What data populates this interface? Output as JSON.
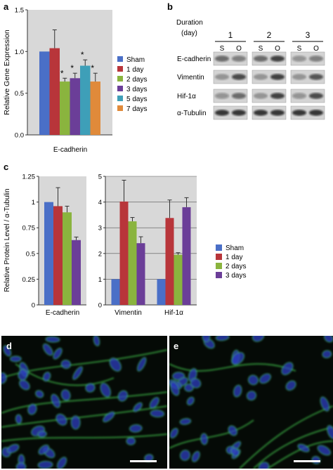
{
  "colors": {
    "sham": "#4a6fc7",
    "day1": "#b8353a",
    "day2": "#8ab43e",
    "day3": "#6b3e98",
    "day5": "#3e9fb8",
    "day7": "#e08a3a",
    "panel_bg": "#d8d8d8",
    "axis": "#333333",
    "micro_bg": "#050a06",
    "nuclei": "#2d3fbf",
    "membrane": "#3fbf4a"
  },
  "panel_labels": [
    "a",
    "b",
    "c",
    "d",
    "e"
  ],
  "panel_a": {
    "chart_data": {
      "type": "bar",
      "ylabel": "Relative Gene Expression",
      "ylim": [
        0,
        1.5
      ],
      "yticks": [
        "0.0",
        "0.5",
        "1.0",
        "1.5"
      ],
      "categories": [
        "E-cadherin"
      ],
      "series": [
        {
          "name": "Sham",
          "values": [
            1.0
          ],
          "error": [
            0
          ],
          "star": false
        },
        {
          "name": "1 day",
          "values": [
            1.04
          ],
          "error": [
            0.22
          ],
          "star": false
        },
        {
          "name": "2 days",
          "values": [
            0.64
          ],
          "error": [
            0.04
          ],
          "star": true
        },
        {
          "name": "3 days",
          "values": [
            0.68
          ],
          "error": [
            0.06
          ],
          "star": true
        },
        {
          "name": "5 days",
          "values": [
            0.83
          ],
          "error": [
            0.07
          ],
          "star": true
        },
        {
          "name": "7 days",
          "values": [
            0.64
          ],
          "error": [
            0.1
          ],
          "star": true
        }
      ],
      "legend": "right",
      "grid": false
    },
    "star": "*"
  },
  "panel_b": {
    "header": {
      "line1": "Duration",
      "line2": "(day)"
    },
    "groups": [
      "1",
      "2",
      "3"
    ],
    "lanes": [
      "S",
      "O"
    ],
    "rows": [
      "E-cadherin",
      "Vimentin",
      "Hif-1α",
      "α-Tubulin"
    ]
  },
  "panel_c": {
    "ylabel": "Relative Protein Level / α-Tubulin",
    "legend": [
      "Sham",
      "1 day",
      "2 days",
      "3 days"
    ],
    "chart_data": [
      {
        "type": "bar",
        "categories": [
          "E-cadherin"
        ],
        "ylim": [
          0,
          1.25
        ],
        "yticks": [
          "0",
          "0.25",
          "0.5",
          "0.75",
          "1",
          "1.25"
        ],
        "grid": false,
        "series": [
          {
            "name": "Sham",
            "values": [
              1.0
            ],
            "error": [
              0
            ]
          },
          {
            "name": "1 day",
            "values": [
              0.96
            ],
            "error": [
              0.18
            ]
          },
          {
            "name": "2 days",
            "values": [
              0.9
            ],
            "error": [
              0.06
            ]
          },
          {
            "name": "3 days",
            "values": [
              0.63
            ],
            "error": [
              0.03
            ]
          }
        ]
      },
      {
        "type": "bar",
        "categories": [
          "Vimentin",
          "Hif-1α"
        ],
        "ylim": [
          0,
          5
        ],
        "yticks": [
          "0",
          "1",
          "2",
          "3",
          "4",
          "5"
        ],
        "grid": true,
        "series": [
          {
            "name": "Sham",
            "values": [
              1.0,
              1.0
            ],
            "error": [
              0,
              0
            ]
          },
          {
            "name": "1 day",
            "values": [
              4.02,
              3.38
            ],
            "error": [
              0.83,
              0.7
            ]
          },
          {
            "name": "2 days",
            "values": [
              3.25,
              1.95
            ],
            "error": [
              0.15,
              0.08
            ]
          },
          {
            "name": "3 days",
            "values": [
              2.4,
              3.8
            ],
            "error": [
              0.25,
              0.37
            ]
          }
        ]
      }
    ]
  }
}
